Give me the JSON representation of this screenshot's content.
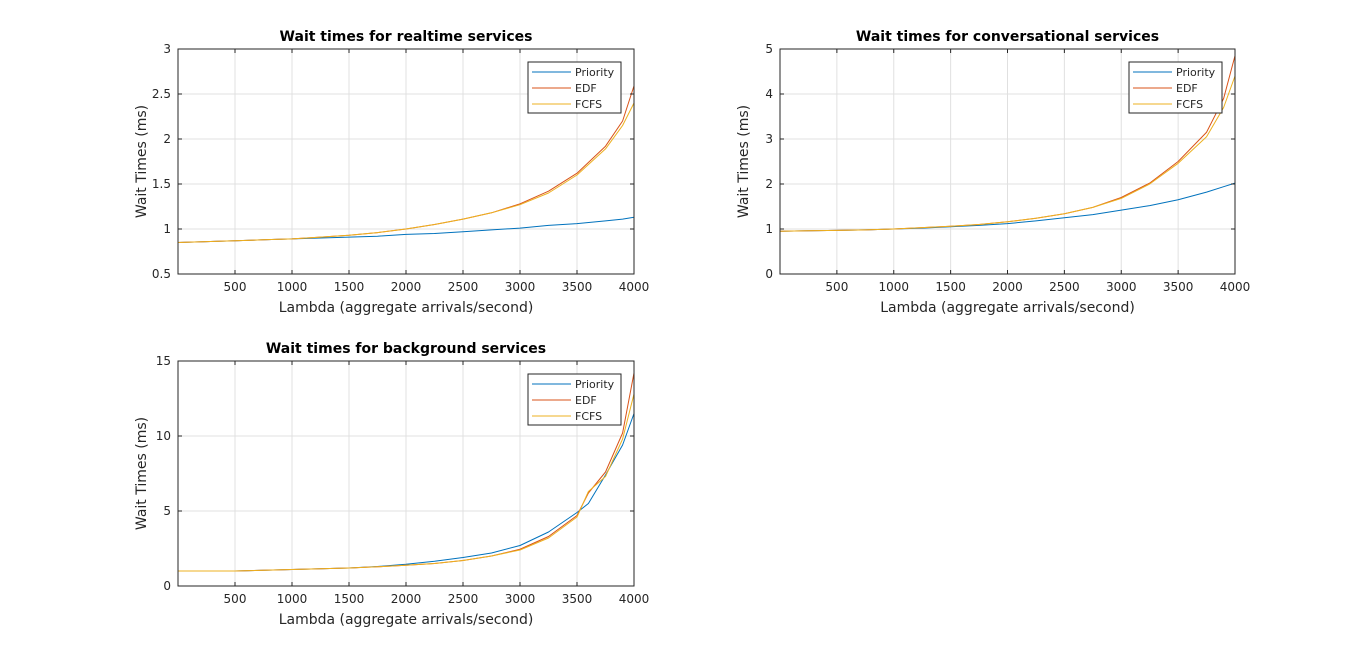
{
  "chart_data": [
    {
      "type": "line",
      "title": "Wait times for realtime services",
      "xlabel": "Lambda (aggregate arrivals/second)",
      "ylabel": "Wait Times (ms)",
      "xlim": [
        0,
        4000
      ],
      "ylim": [
        0.5,
        3
      ],
      "xticks": [
        500,
        1000,
        1500,
        2000,
        2500,
        3000,
        3500,
        4000
      ],
      "xtick_labels": [
        "500",
        "1000",
        "1500",
        "2000",
        "2500",
        "3000",
        "3500",
        "4000"
      ],
      "yticks": [
        0.5,
        1,
        1.5,
        2,
        2.5,
        3
      ],
      "ytick_labels": [
        "0.5",
        "1",
        "1.5",
        "2",
        "2.5",
        "3"
      ],
      "grid": true,
      "legend": "top-right",
      "x": [
        0,
        250,
        500,
        750,
        1000,
        1250,
        1500,
        1750,
        2000,
        2250,
        2500,
        2750,
        3000,
        3250,
        3500,
        3750,
        3900,
        4000
      ],
      "series": [
        {
          "name": "Priority",
          "color": "#0072BD",
          "values": [
            0.85,
            0.86,
            0.87,
            0.88,
            0.89,
            0.9,
            0.91,
            0.92,
            0.94,
            0.95,
            0.97,
            0.99,
            1.01,
            1.04,
            1.06,
            1.09,
            1.11,
            1.13
          ]
        },
        {
          "name": "EDF",
          "color": "#D95319",
          "values": [
            0.85,
            0.86,
            0.87,
            0.88,
            0.89,
            0.91,
            0.93,
            0.96,
            1.0,
            1.05,
            1.11,
            1.18,
            1.28,
            1.42,
            1.62,
            1.92,
            2.2,
            2.59
          ]
        },
        {
          "name": "FCFS",
          "color": "#EDB120",
          "values": [
            0.85,
            0.86,
            0.87,
            0.88,
            0.89,
            0.91,
            0.93,
            0.96,
            1.0,
            1.05,
            1.11,
            1.18,
            1.27,
            1.4,
            1.6,
            1.89,
            2.15,
            2.4
          ]
        }
      ]
    },
    {
      "type": "line",
      "title": "Wait times for conversational services",
      "xlabel": "Lambda (aggregate arrivals/second)",
      "ylabel": "Wait Times (ms)",
      "xlim": [
        0,
        4000
      ],
      "ylim": [
        0,
        5
      ],
      "xticks": [
        500,
        1000,
        1500,
        2000,
        2500,
        3000,
        3500,
        4000
      ],
      "xtick_labels": [
        "500",
        "1000",
        "1500",
        "2000",
        "2500",
        "3000",
        "3500",
        "4000"
      ],
      "yticks": [
        0,
        1,
        2,
        3,
        4,
        5
      ],
      "ytick_labels": [
        "0",
        "1",
        "2",
        "3",
        "4",
        "5"
      ],
      "grid": true,
      "legend": "top-right",
      "x": [
        0,
        250,
        500,
        750,
        1000,
        1250,
        1500,
        1750,
        2000,
        2250,
        2500,
        2750,
        3000,
        3250,
        3500,
        3750,
        3900,
        4000
      ],
      "series": [
        {
          "name": "Priority",
          "color": "#0072BD",
          "values": [
            0.95,
            0.96,
            0.97,
            0.98,
            1.0,
            1.02,
            1.05,
            1.08,
            1.12,
            1.18,
            1.25,
            1.32,
            1.42,
            1.52,
            1.65,
            1.82,
            1.94,
            2.02
          ]
        },
        {
          "name": "EDF",
          "color": "#D95319",
          "values": [
            0.95,
            0.96,
            0.97,
            0.98,
            1.0,
            1.03,
            1.06,
            1.1,
            1.16,
            1.24,
            1.34,
            1.48,
            1.7,
            2.02,
            2.5,
            3.15,
            3.9,
            4.85
          ]
        },
        {
          "name": "FCFS",
          "color": "#EDB120",
          "values": [
            0.95,
            0.96,
            0.97,
            0.98,
            1.0,
            1.03,
            1.06,
            1.1,
            1.16,
            1.24,
            1.34,
            1.48,
            1.68,
            2.0,
            2.46,
            3.05,
            3.7,
            4.4
          ]
        }
      ]
    },
    {
      "type": "line",
      "title": "Wait times for background services",
      "xlabel": "Lambda (aggregate arrivals/second)",
      "ylabel": "Wait Times (ms)",
      "xlim": [
        0,
        4000
      ],
      "ylim": [
        0,
        15
      ],
      "xticks": [
        500,
        1000,
        1500,
        2000,
        2500,
        3000,
        3500,
        4000
      ],
      "xtick_labels": [
        "500",
        "1000",
        "1500",
        "2000",
        "2500",
        "3000",
        "3500",
        "4000"
      ],
      "yticks": [
        0,
        5,
        10,
        15
      ],
      "ytick_labels": [
        "0",
        "5",
        "10",
        "15"
      ],
      "grid": true,
      "legend": "top-right",
      "x": [
        0,
        250,
        500,
        750,
        1000,
        1250,
        1500,
        1750,
        2000,
        2250,
        2500,
        2750,
        3000,
        3250,
        3500,
        3600,
        3750,
        3900,
        4000
      ],
      "series": [
        {
          "name": "Priority",
          "color": "#0072BD",
          "values": [
            1.0,
            1.0,
            1.0,
            1.05,
            1.1,
            1.15,
            1.2,
            1.3,
            1.45,
            1.65,
            1.9,
            2.2,
            2.7,
            3.6,
            4.9,
            5.5,
            7.4,
            9.4,
            11.5
          ]
        },
        {
          "name": "EDF",
          "color": "#D95319",
          "values": [
            1.0,
            1.0,
            1.0,
            1.05,
            1.1,
            1.15,
            1.2,
            1.28,
            1.38,
            1.5,
            1.7,
            2.0,
            2.45,
            3.3,
            4.7,
            6.2,
            7.6,
            10.2,
            14.2
          ]
        },
        {
          "name": "FCFS",
          "color": "#EDB120",
          "values": [
            1.0,
            1.0,
            1.0,
            1.05,
            1.1,
            1.15,
            1.2,
            1.28,
            1.38,
            1.5,
            1.7,
            2.0,
            2.4,
            3.2,
            4.6,
            6.3,
            7.3,
            9.8,
            12.8
          ]
        }
      ]
    }
  ]
}
